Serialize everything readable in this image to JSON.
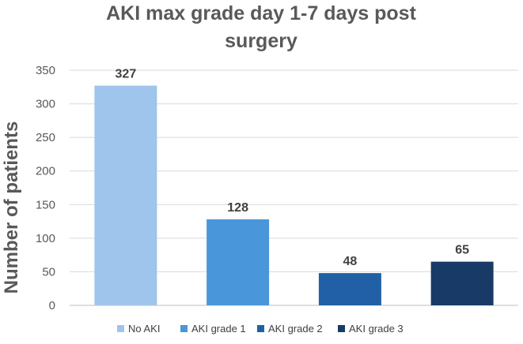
{
  "chart_data": {
    "type": "bar",
    "title_line1": "AKI max grade day 1-7 days post",
    "title_line2": "surgery",
    "xlabel": "",
    "ylabel": "Number of patients",
    "ylim": [
      0,
      350
    ],
    "yticks": [
      "0",
      "50",
      "100",
      "150",
      "200",
      "250",
      "300",
      "350"
    ],
    "categories": [
      "No AKI",
      "AKI grade 1",
      "AKI grade 2",
      "AKI grade 3"
    ],
    "values": [
      327,
      128,
      48,
      65
    ],
    "value_labels": [
      "327",
      "128",
      "48",
      "65"
    ],
    "colors": [
      "#9FC5EC",
      "#4A96DA",
      "#2160A6",
      "#173B66"
    ],
    "grid": true,
    "legend": "bottom"
  }
}
